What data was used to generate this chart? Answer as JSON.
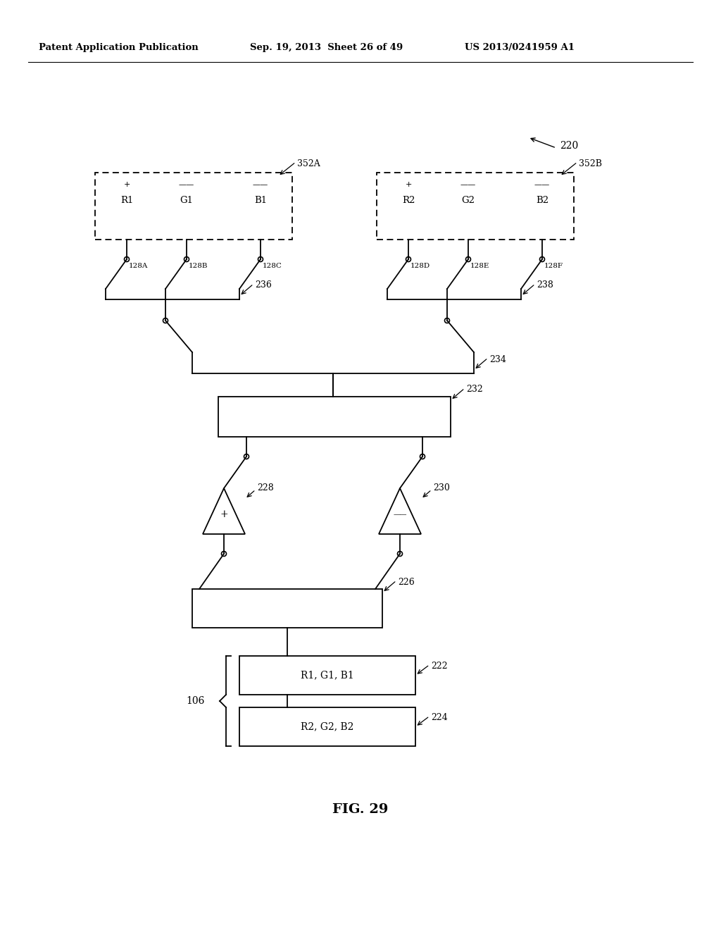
{
  "bg_color": "#ffffff",
  "header_left": "Patent Application Publication",
  "header_mid": "Sep. 19, 2013  Sheet 26 of 49",
  "header_right": "US 2013/0241959 A1",
  "figure_label": "FIG. 29"
}
